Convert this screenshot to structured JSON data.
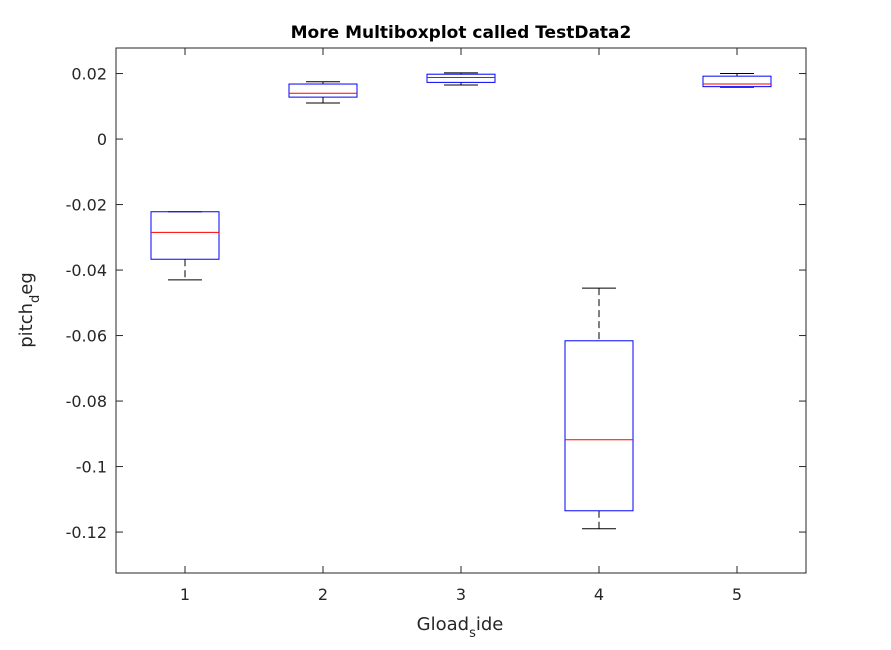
{
  "chart_data": {
    "type": "boxplot",
    "title": "More Multiboxplot called TestData2",
    "xlabel": {
      "main": "Gload",
      "sub": "s",
      "rest": "ide"
    },
    "ylabel": {
      "main": "pitch",
      "sub": "d",
      "rest": "eg"
    },
    "categories": [
      "1",
      "2",
      "3",
      "4",
      "5"
    ],
    "ylim": [
      -0.1325,
      0.0278
    ],
    "yticks": [
      0.02,
      0,
      -0.02,
      -0.04,
      -0.06,
      -0.08,
      -0.1,
      -0.12
    ],
    "ytick_labels": [
      "0.02",
      "0",
      "-0.02",
      "-0.04",
      "-0.06",
      "-0.08",
      "-0.1",
      "-0.12"
    ],
    "boxes": [
      {
        "category": "1",
        "min": -0.043,
        "q1": -0.0367,
        "median": -0.0285,
        "q3": -0.0222,
        "max": -0.0222
      },
      {
        "category": "2",
        "min": 0.011,
        "q1": 0.0128,
        "median": 0.014,
        "q3": 0.0168,
        "max": 0.0175
      },
      {
        "category": "3",
        "min": 0.0165,
        "q1": 0.0173,
        "median": 0.0188,
        "q3": 0.0198,
        "max": 0.0202
      },
      {
        "category": "4",
        "min": -0.119,
        "q1": -0.1135,
        "median": -0.0918,
        "q3": -0.0616,
        "max": -0.0455
      },
      {
        "category": "5",
        "min": 0.0158,
        "q1": 0.016,
        "median": 0.0168,
        "q3": 0.0192,
        "max": 0.02
      }
    ],
    "colors": {
      "box": "#0000ff",
      "median": "#ff0000",
      "whisker": "#000000",
      "axes": "#262626"
    },
    "grid": false
  }
}
